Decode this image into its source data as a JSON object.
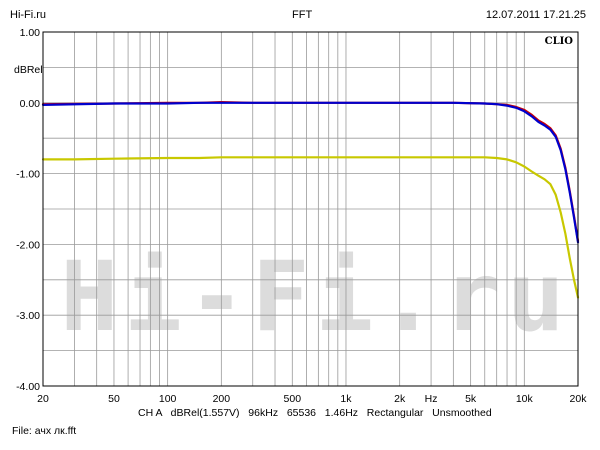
{
  "header": {
    "left": "Hi-Fi.ru",
    "center": "FFT",
    "right": "12.07.2011 17.21.25"
  },
  "brand": "CLIO",
  "watermark": "Hi-Fi.ru",
  "footer": {
    "meta": "CH A   dBRel(1.557V)   96kHz   65536   1.46Hz   Rectangular   Unsmoothed",
    "file": "File: ачх лк.fft"
  },
  "chart_data": {
    "type": "line",
    "x_scale": "log",
    "xlim": [
      20,
      20000
    ],
    "ylim": [
      -4.0,
      1.0
    ],
    "ylabel": "dBRel",
    "xlabel": "Hz",
    "y_ticks": [
      1.0,
      0.0,
      -1.0,
      -2.0,
      -3.0,
      -4.0
    ],
    "y_tick_labels": [
      "1.00",
      "0.00",
      "-1.00",
      "-2.00",
      "-3.00",
      "-4.00"
    ],
    "x_tick_labels": [
      {
        "value": 20,
        "label": "20"
      },
      {
        "value": 50,
        "label": "50"
      },
      {
        "value": 100,
        "label": "100"
      },
      {
        "value": 200,
        "label": "200"
      },
      {
        "value": 500,
        "label": "500"
      },
      {
        "value": 1000,
        "label": "1k"
      },
      {
        "value": 2000,
        "label": "2k"
      },
      {
        "value": 5000,
        "label": "5k"
      },
      {
        "value": 10000,
        "label": "10k"
      },
      {
        "value": 20000,
        "label": "20k"
      }
    ],
    "x_axis_unit_at": 3000,
    "grid": true,
    "series": [
      {
        "color": "#cc0000",
        "x": [
          20,
          50,
          100,
          150,
          200,
          300,
          500,
          1000,
          2000,
          4000,
          6000,
          7000,
          8000,
          9000,
          10000,
          11000,
          12000,
          13000,
          14000,
          15000,
          16000,
          17000,
          18000,
          19000,
          20000
        ],
        "y": [
          -0.02,
          -0.01,
          0.0,
          0.0,
          0.01,
          0.0,
          0.0,
          0.0,
          0.0,
          0.0,
          -0.01,
          -0.02,
          -0.03,
          -0.06,
          -0.1,
          -0.17,
          -0.25,
          -0.3,
          -0.36,
          -0.46,
          -0.65,
          -0.92,
          -1.25,
          -1.6,
          -1.95
        ]
      },
      {
        "color": "#0000cc",
        "x": [
          20,
          50,
          100,
          150,
          200,
          300,
          500,
          1000,
          2000,
          4000,
          6000,
          7000,
          8000,
          9000,
          10000,
          11000,
          12000,
          13000,
          14000,
          15000,
          16000,
          17000,
          18000,
          19000,
          20000
        ],
        "y": [
          -0.03,
          -0.01,
          -0.01,
          0.0,
          0.0,
          0.0,
          0.0,
          0.0,
          0.0,
          0.0,
          -0.01,
          -0.02,
          -0.04,
          -0.07,
          -0.12,
          -0.19,
          -0.27,
          -0.32,
          -0.38,
          -0.48,
          -0.67,
          -0.94,
          -1.27,
          -1.62,
          -1.97
        ]
      },
      {
        "color": "#c8c800",
        "x": [
          20,
          30,
          50,
          100,
          150,
          200,
          300,
          500,
          1000,
          2000,
          4000,
          6000,
          7000,
          8000,
          9000,
          10000,
          11000,
          12000,
          13000,
          14000,
          15000,
          16000,
          17000,
          18000,
          19000,
          20000
        ],
        "y": [
          -0.8,
          -0.8,
          -0.79,
          -0.78,
          -0.78,
          -0.77,
          -0.77,
          -0.77,
          -0.77,
          -0.77,
          -0.77,
          -0.77,
          -0.78,
          -0.8,
          -0.84,
          -0.9,
          -0.97,
          -1.03,
          -1.08,
          -1.15,
          -1.3,
          -1.55,
          -1.85,
          -2.2,
          -2.5,
          -2.75
        ]
      }
    ]
  }
}
